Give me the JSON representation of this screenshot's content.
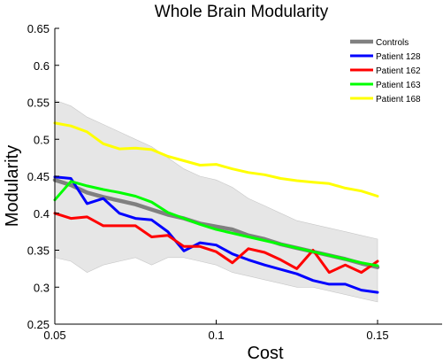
{
  "chart_data": {
    "type": "line",
    "title": "Whole Brain Modularity",
    "xlabel": "Cost",
    "ylabel": "Modularity",
    "xlim": [
      0.05,
      0.17
    ],
    "ylim": [
      0.25,
      0.65
    ],
    "xticks": [
      0.05,
      0.1,
      0.15
    ],
    "xtick_labels": [
      "0.05",
      "0.1",
      "0.15"
    ],
    "yticks": [
      0.25,
      0.3,
      0.35,
      0.4,
      0.45,
      0.5,
      0.55,
      0.6,
      0.65
    ],
    "ytick_labels": [
      "0.25",
      "0.3",
      "0.35",
      "0.4",
      "0.45",
      "0.5",
      "0.55",
      "0.6",
      "0.65"
    ],
    "grid": false,
    "legend_position": "top-right",
    "x": [
      0.05,
      0.055,
      0.06,
      0.065,
      0.07,
      0.075,
      0.08,
      0.085,
      0.09,
      0.095,
      0.1,
      0.105,
      0.11,
      0.115,
      0.12,
      0.125,
      0.13,
      0.135,
      0.14,
      0.145,
      0.15
    ],
    "band": {
      "upper": [
        0.553,
        0.545,
        0.53,
        0.52,
        0.51,
        0.5,
        0.49,
        0.475,
        0.46,
        0.45,
        0.445,
        0.435,
        0.42,
        0.41,
        0.4,
        0.39,
        0.385,
        0.38,
        0.375,
        0.37,
        0.365
      ],
      "lower": [
        0.34,
        0.335,
        0.32,
        0.33,
        0.335,
        0.34,
        0.33,
        0.34,
        0.34,
        0.335,
        0.33,
        0.32,
        0.315,
        0.31,
        0.305,
        0.3,
        0.3,
        0.295,
        0.29,
        0.285,
        0.28
      ],
      "color": "#e6e6e6"
    },
    "series": [
      {
        "name": "Controls",
        "color": "#808080",
        "values": [
          0.445,
          0.438,
          0.428,
          0.422,
          0.417,
          0.412,
          0.405,
          0.398,
          0.393,
          0.386,
          0.382,
          0.378,
          0.37,
          0.365,
          0.358,
          0.353,
          0.348,
          0.343,
          0.338,
          0.332,
          0.327
        ]
      },
      {
        "name": "Patient 128",
        "color": "#0000ff",
        "values": [
          0.449,
          0.447,
          0.413,
          0.42,
          0.4,
          0.393,
          0.391,
          0.375,
          0.349,
          0.36,
          0.357,
          0.345,
          0.337,
          0.33,
          0.324,
          0.318,
          0.309,
          0.304,
          0.304,
          0.296,
          0.293
        ]
      },
      {
        "name": "Patient 162",
        "color": "#ff0000",
        "values": [
          0.4,
          0.393,
          0.395,
          0.383,
          0.383,
          0.383,
          0.368,
          0.37,
          0.355,
          0.355,
          0.348,
          0.333,
          0.352,
          0.347,
          0.337,
          0.325,
          0.35,
          0.32,
          0.33,
          0.32,
          0.335
        ]
      },
      {
        "name": "Patient 163",
        "color": "#00ff00",
        "values": [
          0.418,
          0.443,
          0.437,
          0.432,
          0.428,
          0.423,
          0.415,
          0.401,
          0.393,
          0.385,
          0.378,
          0.373,
          0.368,
          0.363,
          0.358,
          0.353,
          0.348,
          0.343,
          0.338,
          0.333,
          0.329
        ]
      },
      {
        "name": "Patient 168",
        "color": "#ffff00",
        "values": [
          0.522,
          0.518,
          0.51,
          0.494,
          0.487,
          0.488,
          0.486,
          0.477,
          0.471,
          0.465,
          0.466,
          0.46,
          0.455,
          0.452,
          0.447,
          0.444,
          0.442,
          0.44,
          0.434,
          0.43,
          0.423
        ]
      }
    ]
  }
}
